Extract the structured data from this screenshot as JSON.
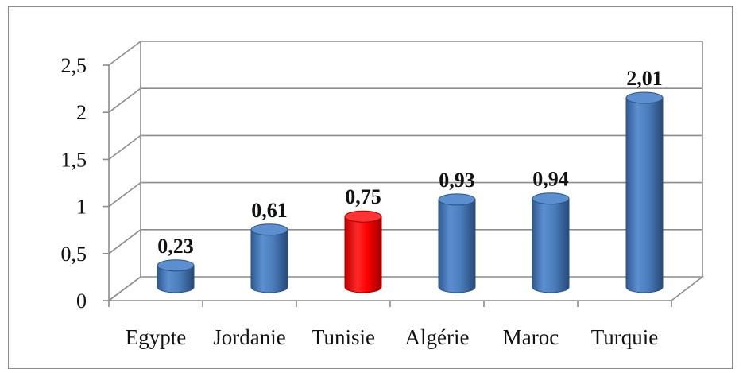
{
  "chart_data": {
    "type": "bar",
    "style": "3d-cylinder",
    "categories": [
      "Egypte",
      "Jordanie",
      "Tunisie",
      "Algérie",
      "Maroc",
      "Turquie"
    ],
    "values": [
      0.23,
      0.61,
      0.75,
      0.93,
      0.94,
      2.01
    ],
    "data_labels": [
      "0,23",
      "0,61",
      "0,75",
      "0,93",
      "0,94",
      "2,01"
    ],
    "y_ticks": [
      0,
      0.5,
      1,
      1.5,
      2,
      2.5
    ],
    "y_tick_labels": [
      "0",
      "0,5",
      "1",
      "1,5",
      "2",
      "2,5"
    ],
    "ylim": [
      0,
      2.5
    ],
    "grid": true,
    "legend": "none",
    "colors": {
      "default": "#4a7ebb",
      "highlight": "#ff0000",
      "highlight_category": "Tunisie"
    }
  }
}
